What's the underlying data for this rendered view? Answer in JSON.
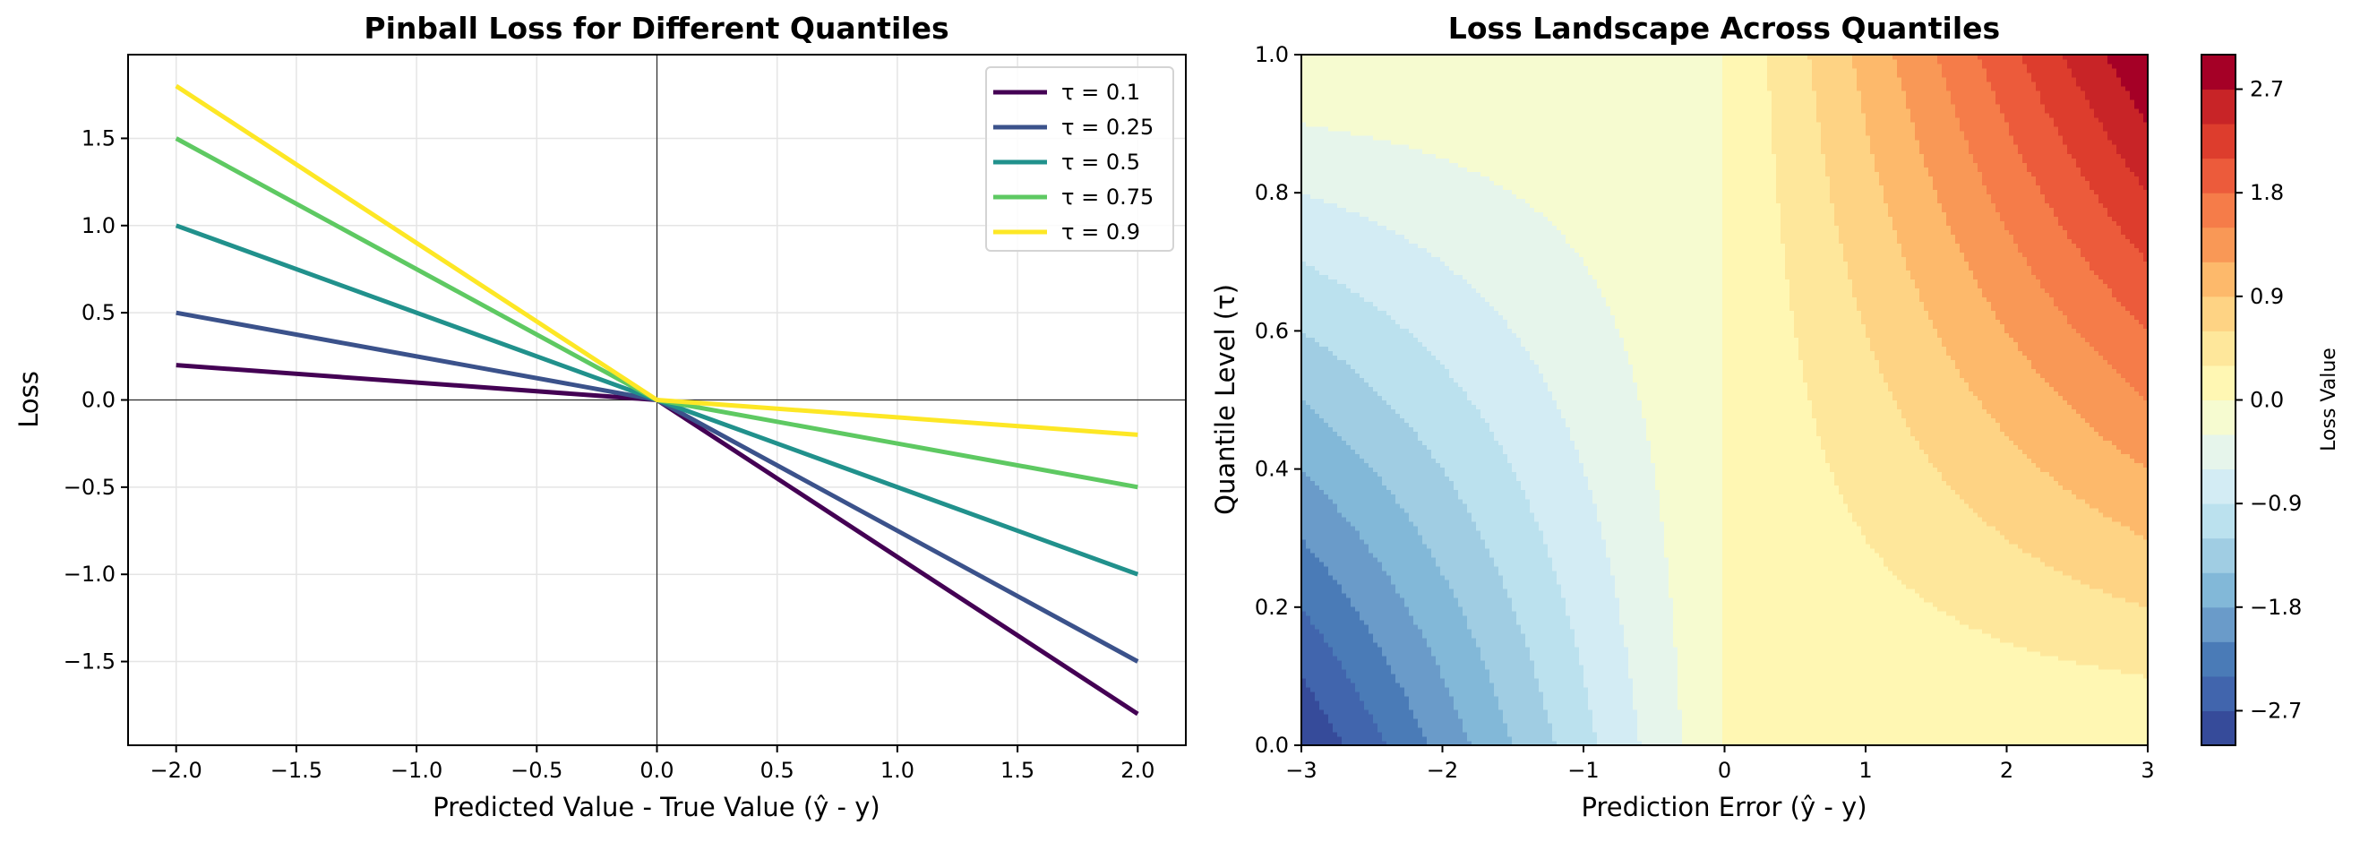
{
  "chart_data": [
    {
      "type": "line",
      "title": "Pinball Loss for Different Quantiles",
      "xlabel": "Predicted Value - True Value (ŷ - y)",
      "ylabel": "Loss",
      "xlim": [
        -2.2,
        2.2
      ],
      "ylim": [
        -1.98,
        1.98
      ],
      "xticks": [
        -2.0,
        -1.5,
        -1.0,
        -0.5,
        0.0,
        0.5,
        1.0,
        1.5,
        2.0
      ],
      "xtick_labels": [
        "−2.0",
        "−1.5",
        "−1.0",
        "−0.5",
        "0.0",
        "0.5",
        "1.0",
        "1.5",
        "2.0"
      ],
      "yticks": [
        -1.5,
        -1.0,
        -0.5,
        0.0,
        0.5,
        1.0,
        1.5
      ],
      "ytick_labels": [
        "−1.5",
        "−1.0",
        "−0.5",
        "0.0",
        "0.5",
        "1.0",
        "1.5"
      ],
      "grid": true,
      "reference_lines": {
        "horizontal": 0.0,
        "vertical": 0.0
      },
      "legend_position": "top-right",
      "x": [
        -2.0,
        0.0,
        2.0
      ],
      "series": [
        {
          "name": "τ = 0.1",
          "tau": 0.1,
          "color": "#440154",
          "values": [
            0.2,
            0.0,
            -1.8
          ]
        },
        {
          "name": "τ = 0.25",
          "tau": 0.25,
          "color": "#3b528b",
          "values": [
            0.5,
            0.0,
            -1.5
          ]
        },
        {
          "name": "τ = 0.5",
          "tau": 0.5,
          "color": "#21918c",
          "values": [
            1.0,
            0.0,
            -1.0
          ]
        },
        {
          "name": "τ = 0.75",
          "tau": 0.75,
          "color": "#5ec962",
          "values": [
            1.5,
            0.0,
            -0.5
          ]
        },
        {
          "name": "τ = 0.9",
          "tau": 0.9,
          "color": "#fde725",
          "values": [
            1.8,
            0.0,
            -0.2
          ]
        }
      ]
    },
    {
      "type": "heatmap",
      "subtype": "filled-contour",
      "title": "Loss Landscape Across Quantiles",
      "xlabel": "Prediction Error (ŷ - y)",
      "ylabel": "Quantile Level (τ)",
      "xlim": [
        -3,
        3
      ],
      "ylim": [
        0.0,
        1.0
      ],
      "xticks": [
        -3,
        -2,
        -1,
        0,
        1,
        2,
        3
      ],
      "xtick_labels": [
        "−3",
        "−2",
        "−1",
        "0",
        "1",
        "2",
        "3"
      ],
      "yticks": [
        0.0,
        0.2,
        0.4,
        0.6,
        0.8,
        1.0
      ],
      "ytick_labels": [
        "0.0",
        "0.2",
        "0.4",
        "0.6",
        "0.8",
        "1.0"
      ],
      "function": "error * tau if error >= 0 else error * (1 - tau)",
      "levels": [
        -3.0,
        -2.7,
        -2.4,
        -2.1,
        -1.8,
        -1.5,
        -1.2,
        -0.9,
        -0.6,
        -0.3,
        0.0,
        0.3,
        0.6,
        0.9,
        1.2,
        1.5,
        1.8,
        2.1,
        2.4,
        2.7,
        3.0
      ],
      "band_colors": [
        "#364b9a",
        "#4165ad",
        "#4a7bb7",
        "#6a9bc9",
        "#82b8d8",
        "#a0cde3",
        "#bbe1ee",
        "#d3ecf4",
        "#e6f5eb",
        "#f6fbd0",
        "#fff7b3",
        "#fee79b",
        "#fed384",
        "#fdb96b",
        "#f99856",
        "#f57c49",
        "#ec5b3b",
        "#dd3d2d",
        "#c82427",
        "#a50026"
      ],
      "colorbar": {
        "label": "Loss Value",
        "range": [
          -3.0,
          3.0
        ],
        "ticks": [
          -2.7,
          -1.8,
          -0.9,
          0.0,
          0.9,
          1.8,
          2.7
        ],
        "tick_labels": [
          "−2.7",
          "−1.8",
          "−0.9",
          "0.0",
          "0.9",
          "1.8",
          "2.7"
        ],
        "colormap": "RdYlBu_r"
      }
    }
  ]
}
